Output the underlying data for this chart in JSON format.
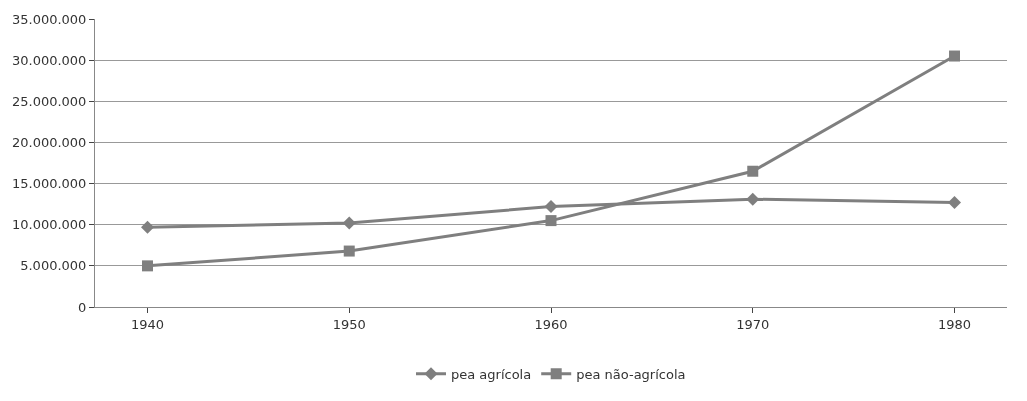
{
  "chart_data": {
    "type": "line",
    "categories": [
      "1940",
      "1950",
      "1960",
      "1970",
      "1980"
    ],
    "series": [
      {
        "name": "pea agrícola",
        "color": "#7f7f7f",
        "marker": "diamond",
        "values": [
          9700000,
          10200000,
          12200000,
          13100000,
          12700000
        ]
      },
      {
        "name": "pea não-agrícola",
        "color": "#7f7f7f",
        "marker": "square",
        "values": [
          5000000,
          6800000,
          10500000,
          16500000,
          30500000
        ]
      }
    ],
    "ylim": [
      0,
      35000000
    ],
    "yticks": [
      0,
      {
        "value": 5000000,
        "label": "5.000.000"
      },
      {
        "value": 10000000,
        "label": "10.000.000"
      },
      {
        "value": 15000000,
        "label": "15.000.000"
      },
      {
        "value": 20000000,
        "label": "20.000.000"
      },
      {
        "value": 25000000,
        "label": "25.000.000"
      },
      {
        "value": 30000000,
        "label": "30.000.000"
      },
      {
        "value": 35000000,
        "label": "35.000.000"
      }
    ],
    "grid": "y",
    "legend": "bottom",
    "line_style": "solid"
  }
}
